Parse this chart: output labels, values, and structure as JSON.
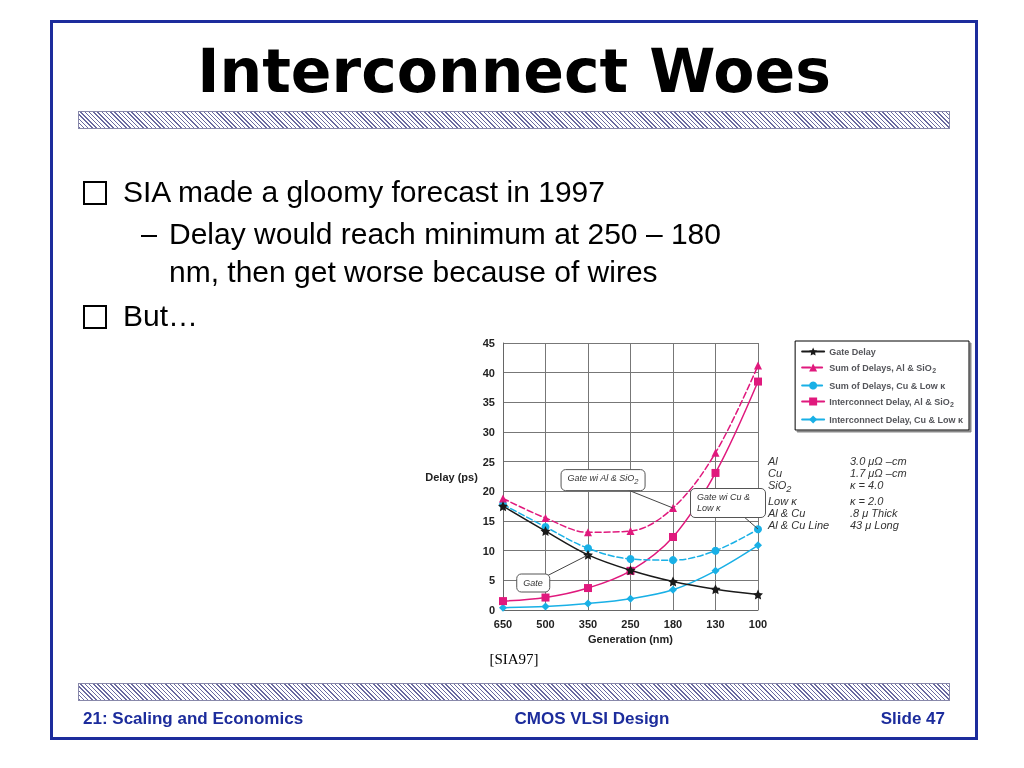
{
  "chart_data": {
    "type": "line",
    "title": "Interconnect Woes",
    "xlabel": "Generation (nm)",
    "ylabel": "Delay (ps)",
    "categories": [
      "650",
      "500",
      "350",
      "250",
      "180",
      "130",
      "100"
    ],
    "ylim": [
      0,
      45
    ],
    "yticks": [
      0,
      5,
      10,
      15,
      20,
      25,
      30,
      35,
      40,
      45
    ],
    "grid": true,
    "legend": "top right",
    "series": [
      {
        "name": "Gate Delay",
        "color": "#1a1a1a",
        "marker": "star",
        "line_style": "solid",
        "values": [
          17.5,
          13.3,
          9.3,
          6.7,
          4.8,
          3.5,
          2.6
        ]
      },
      {
        "name": "Sum of Delays, Al & SiO$_{2}$",
        "color": "#e0197d",
        "marker": "triangle",
        "line_style": "dashed",
        "values": [
          18.8,
          15.5,
          13.1,
          13.3,
          17.2,
          26.5,
          41.2
        ]
      },
      {
        "name": "Sum of Delays, Cu & Low κ",
        "color": "#19b0e6",
        "marker": "circle",
        "line_style": "dashed",
        "values": [
          17.8,
          14.0,
          10.4,
          8.6,
          8.4,
          10.0,
          13.6
        ]
      },
      {
        "name": "Interconnect Delay, Al & SiO$_{2}$",
        "color": "#e0197d",
        "marker": "square",
        "line_style": "solid",
        "values": [
          1.5,
          2.1,
          3.7,
          6.6,
          12.3,
          23.1,
          38.5
        ]
      },
      {
        "name": "Interconnect Delay, Cu & Low κ",
        "color": "#19b0e6",
        "marker": "diamond",
        "line_style": "solid",
        "values": [
          0.4,
          0.6,
          1.1,
          1.9,
          3.4,
          6.6,
          10.9
        ]
      }
    ],
    "annotations": [
      "SIA made a gloomy forecast in 1997",
      "Delay would reach minimum at 250 – 180 nm, then get worse because of wires",
      "But…",
      "Al\t3.0 μΩ –cm",
      "Cu\t1.7 μΩ –cm",
      "SiO$_{2}$\tκ = 4.0",
      "Low κ\tκ = 2.0",
      "Al & Cu\t.8 μ Thick",
      "Al & Cu Line\t43 μ Long",
      "[SIA97]",
      "21: Scaling and Economics",
      "CMOS VLSI Design",
      "Slide 47",
      {
        "text": "Gate wi Al & SiO$_{2}$",
        "x": "180",
        "y": 17.2
      },
      {
        "text": "Gate wi Cu & Low κ",
        "x": "100",
        "y": 13.6
      },
      {
        "text": "Gate",
        "x": "350",
        "y": 9.3
      }
    ]
  }
}
